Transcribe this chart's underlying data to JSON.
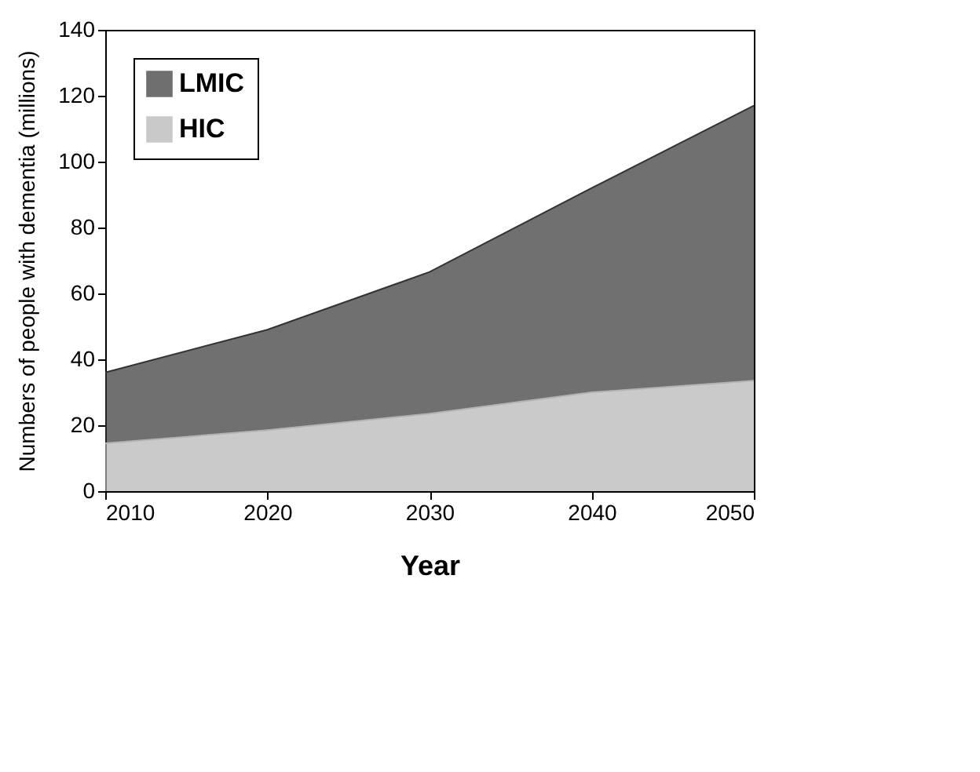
{
  "chart_data": {
    "type": "area",
    "xlabel": "Year",
    "ylabel": "Numbers of people with dementia (millions)",
    "x": [
      2010,
      2020,
      2030,
      2040,
      2050
    ],
    "series": [
      {
        "name": "HIC",
        "color": "#b3b3b3",
        "values": [
          14.5,
          18.5,
          23.5,
          30,
          33.5
        ]
      },
      {
        "name": "LMIC",
        "color": "#333333",
        "values": [
          21.5,
          30.5,
          43,
          62,
          83.5
        ]
      }
    ],
    "stacked": true,
    "xlim": [
      2010,
      2050
    ],
    "xticks": [
      2010,
      2020,
      2030,
      2040,
      2050
    ],
    "ylim": [
      0,
      140
    ],
    "yticks": [
      0,
      20,
      40,
      60,
      80,
      100,
      120,
      140
    ],
    "grid": false,
    "legend": "top left"
  }
}
